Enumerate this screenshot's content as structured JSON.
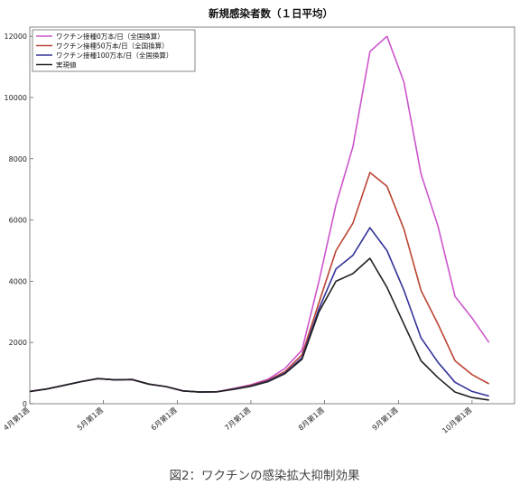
{
  "chart_data": {
    "type": "line",
    "title": "新規感染者数（１日平均）",
    "xlabel": "",
    "ylabel": "",
    "ylim": [
      0,
      12300
    ],
    "yticks": [
      0,
      2000,
      4000,
      6000,
      8000,
      10000,
      12000
    ],
    "grid": false,
    "legend_position": "top-left",
    "x": [
      0,
      1,
      2,
      3,
      4,
      5,
      6,
      7,
      8,
      9,
      10,
      11,
      12,
      13,
      14,
      15,
      16,
      17,
      18,
      19,
      20,
      21,
      22,
      23,
      24,
      25,
      26,
      27,
      28,
      29,
      30
    ],
    "x_tick_labels": [
      {
        "x": 0,
        "label": "4月第1週"
      },
      {
        "x": 4.33,
        "label": "5月第1週"
      },
      {
        "x": 8.67,
        "label": "6月第1週"
      },
      {
        "x": 13,
        "label": "7月第1週"
      },
      {
        "x": 17.33,
        "label": "8月第1週"
      },
      {
        "x": 21.67,
        "label": "9月第1週"
      },
      {
        "x": 26,
        "label": "10月第1週"
      }
    ],
    "series": [
      {
        "name": "ワクチン接種0万本/日（全国換算）",
        "color": "#cc55cc",
        "values": [
          400,
          480,
          600,
          720,
          820,
          780,
          790,
          640,
          560,
          420,
          380,
          390,
          500,
          620,
          800,
          1150,
          1750,
          4000,
          6500,
          8400,
          11500,
          12000,
          10500,
          7500,
          5800,
          3500,
          2800,
          2000,
          null,
          null,
          null
        ]
      },
      {
        "name": "ワクチン接種50万本/日（全国換算）",
        "color": "#bb4433",
        "values": [
          400,
          480,
          600,
          720,
          820,
          780,
          790,
          640,
          560,
          420,
          380,
          390,
          490,
          600,
          760,
          1050,
          1600,
          3300,
          5000,
          5900,
          7550,
          7100,
          5700,
          3700,
          2600,
          1400,
          950,
          650,
          null,
          null,
          null
        ]
      },
      {
        "name": "ワクチン接種100万本/日（全国換算）",
        "color": "#333399",
        "values": [
          400,
          480,
          600,
          720,
          820,
          780,
          790,
          640,
          560,
          420,
          380,
          390,
          480,
          580,
          740,
          1000,
          1500,
          3100,
          4400,
          4850,
          5750,
          5000,
          3700,
          2150,
          1350,
          700,
          400,
          250,
          null,
          null,
          null
        ]
      },
      {
        "name": "実現値",
        "color": "#222222",
        "values": [
          400,
          480,
          600,
          720,
          820,
          780,
          790,
          640,
          560,
          420,
          380,
          390,
          470,
          570,
          720,
          980,
          1450,
          3000,
          4000,
          4250,
          4750,
          3800,
          2600,
          1400,
          850,
          380,
          200,
          120,
          null,
          null,
          null
        ]
      }
    ]
  },
  "caption": "図2：ワクチンの感染拡大抑制効果"
}
